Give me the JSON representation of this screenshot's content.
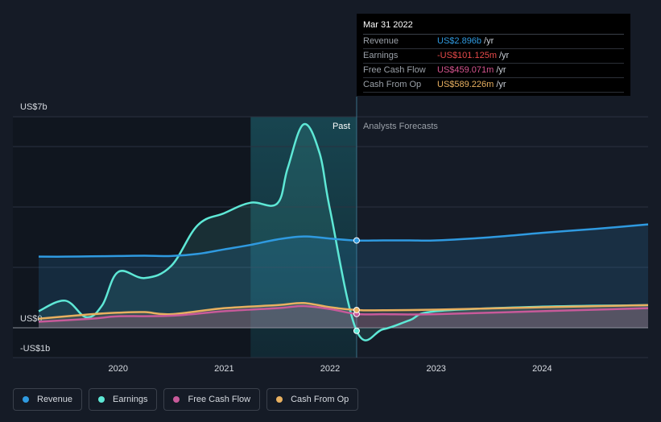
{
  "chart_data": {
    "type": "line",
    "y_axis": {
      "labels": [
        "US$7b",
        "US$0",
        "-US$1b"
      ],
      "ylim": [
        -1,
        7
      ]
    },
    "x_axis": {
      "tick_labels": [
        "2020",
        "2021",
        "2022",
        "2023",
        "2024"
      ],
      "xlim": [
        2019.25,
        2025.0
      ]
    },
    "regions": {
      "past_label": "Past",
      "forecast_label": "Analysts Forecasts",
      "divider_x": 2022.25,
      "highlight_start_x": 2021.25
    },
    "series": [
      {
        "name": "Revenue",
        "color": "#2f9ae0",
        "x": [
          2019.25,
          2019.5,
          2019.75,
          2020.0,
          2020.25,
          2020.5,
          2020.75,
          2021.0,
          2021.25,
          2021.5,
          2021.75,
          2022.0,
          2022.25,
          2022.5,
          2022.75,
          2023.0,
          2023.5,
          2024.0,
          2024.5,
          2025.0
        ],
        "y": [
          2.36,
          2.36,
          2.37,
          2.38,
          2.39,
          2.38,
          2.45,
          2.6,
          2.75,
          2.93,
          3.03,
          2.96,
          2.896,
          2.9,
          2.9,
          2.9,
          3.0,
          3.15,
          3.28,
          3.43
        ]
      },
      {
        "name": "Earnings",
        "color": "#5ee8d6",
        "x": [
          2019.25,
          2019.5,
          2019.7,
          2019.85,
          2020.0,
          2020.25,
          2020.5,
          2020.75,
          2021.0,
          2021.25,
          2021.5,
          2021.6,
          2021.75,
          2021.9,
          2022.0,
          2022.25,
          2022.5,
          2022.75,
          2023.0,
          2024.0,
          2025.0
        ],
        "y": [
          0.55,
          0.9,
          0.35,
          0.75,
          1.85,
          1.65,
          2.05,
          3.4,
          3.8,
          4.15,
          4.12,
          5.3,
          6.75,
          5.8,
          3.9,
          -0.101,
          -0.05,
          0.25,
          0.55,
          0.7,
          0.75
        ]
      },
      {
        "name": "Free Cash Flow",
        "color": "#c85a9a",
        "x": [
          2019.25,
          2019.75,
          2020.0,
          2020.5,
          2021.0,
          2021.5,
          2021.75,
          2022.0,
          2022.25,
          2022.5,
          2023.0,
          2024.0,
          2025.0
        ],
        "y": [
          0.2,
          0.3,
          0.38,
          0.4,
          0.55,
          0.65,
          0.72,
          0.62,
          0.459,
          0.45,
          0.45,
          0.55,
          0.65
        ]
      },
      {
        "name": "Cash From Op",
        "color": "#e8b060",
        "x": [
          2019.25,
          2019.75,
          2020.0,
          2020.25,
          2020.5,
          2021.0,
          2021.5,
          2021.75,
          2022.0,
          2022.25,
          2022.5,
          2023.0,
          2024.0,
          2025.0
        ],
        "y": [
          0.3,
          0.45,
          0.5,
          0.52,
          0.45,
          0.65,
          0.75,
          0.82,
          0.68,
          0.589,
          0.58,
          0.6,
          0.68,
          0.75
        ]
      }
    ]
  },
  "tooltip": {
    "date": "Mar 31 2022",
    "rows": [
      {
        "label": "Revenue",
        "value": "US$2.896b",
        "unit": "/yr",
        "color": "#2f9ae0"
      },
      {
        "label": "Earnings",
        "value": "-US$101.125m",
        "unit": "/yr",
        "color": "#e84a4a"
      },
      {
        "label": "Free Cash Flow",
        "value": "US$459.071m",
        "unit": "/yr",
        "color": "#d6548f"
      },
      {
        "label": "Cash From Op",
        "value": "US$589.226m",
        "unit": "/yr",
        "color": "#e8b060"
      }
    ]
  },
  "legend": [
    {
      "label": "Revenue",
      "color": "#2f9ae0"
    },
    {
      "label": "Earnings",
      "color": "#5ee8d6"
    },
    {
      "label": "Free Cash Flow",
      "color": "#c85a9a"
    },
    {
      "label": "Cash From Op",
      "color": "#e8b060"
    }
  ]
}
